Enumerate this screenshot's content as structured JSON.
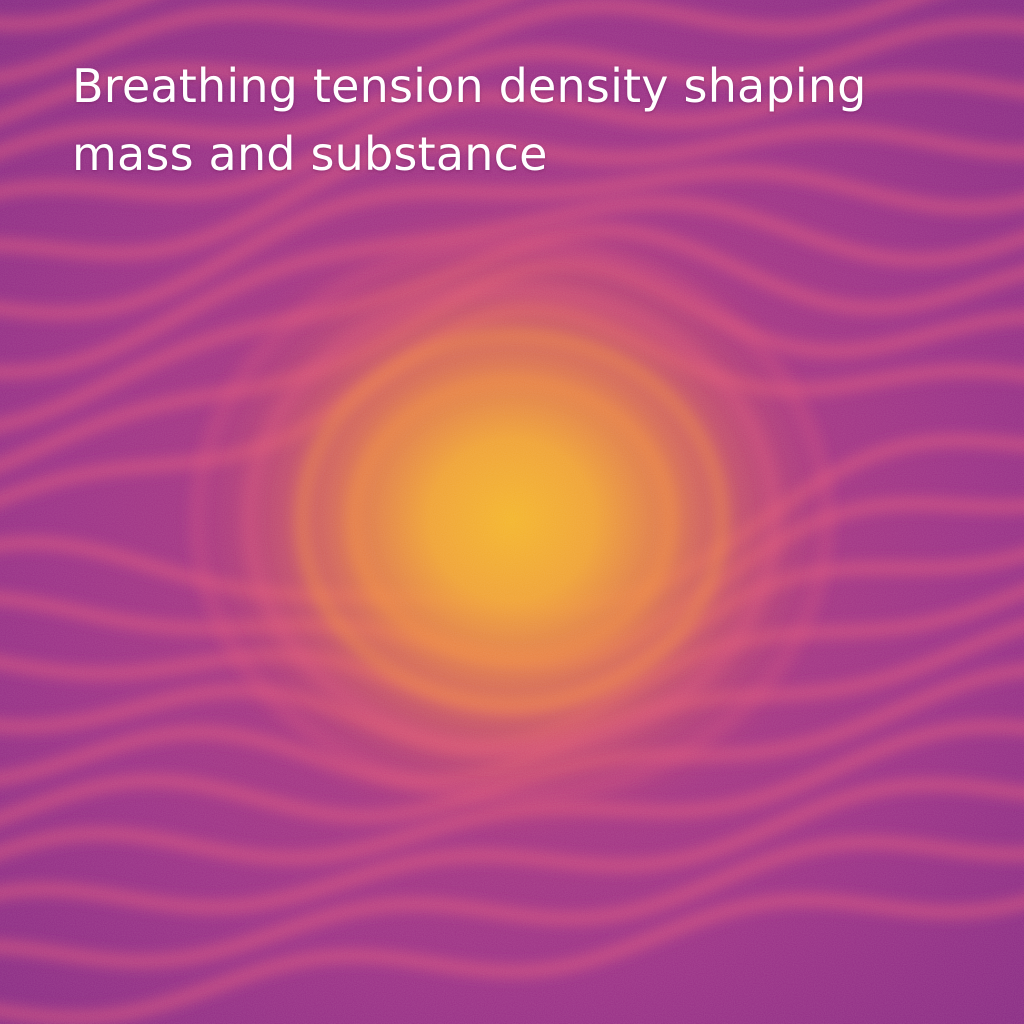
{
  "caption": {
    "line1": "Breathing tension density shaping",
    "line2": "mass and substance"
  },
  "palette": {
    "background": "#8f2a86",
    "band": "#e0527a",
    "glow_outer": "#f08a3c",
    "glow_core": "#f4b52a"
  }
}
